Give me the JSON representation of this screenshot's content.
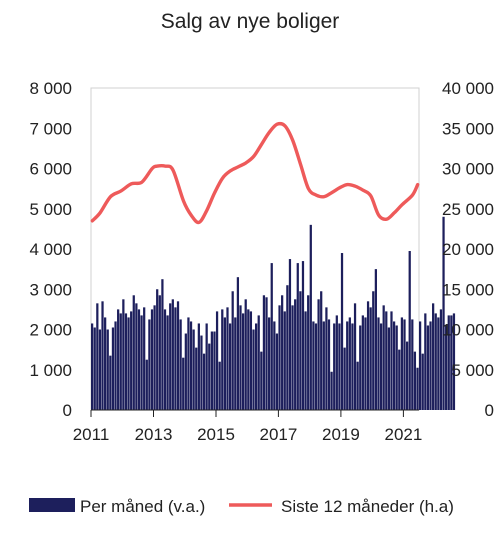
{
  "chart_data": {
    "type": "bar",
    "title": "Salg av nye boliger",
    "left_axis": {
      "ylim": [
        0,
        8000
      ],
      "ticks": [
        "0",
        "1 000",
        "2 000",
        "3 000",
        "4 000",
        "5 000",
        "6 000",
        "7 000",
        "8 000"
      ]
    },
    "right_axis": {
      "ylim": [
        0,
        40000
      ],
      "ticks": [
        "0",
        "5 000",
        "10 000",
        "15 000",
        "20 000",
        "25 000",
        "30 000",
        "35 000",
        "40 000"
      ]
    },
    "x_ticks": [
      "2011",
      "2013",
      "2015",
      "2017",
      "2019",
      "2021"
    ],
    "x_range": [
      "2011-01",
      "2021-06"
    ],
    "grid": false,
    "legend_position": "bottom",
    "colors": {
      "bars": "#1d1f5c",
      "line": "#ee5a5a"
    },
    "series": [
      {
        "name": "Per måned (v.a.)",
        "axis": "left",
        "kind": "bar",
        "start": "2011-01",
        "values": [
          2150,
          2050,
          2650,
          2000,
          2700,
          2300,
          2000,
          1350,
          2050,
          2200,
          2500,
          2400,
          2750,
          2400,
          2300,
          2450,
          2850,
          2650,
          2500,
          2350,
          2550,
          1250,
          2250,
          2500,
          2600,
          3000,
          2850,
          3250,
          2500,
          2350,
          2650,
          2750,
          2550,
          2700,
          2250,
          1300,
          1900,
          2300,
          2200,
          2000,
          1550,
          2150,
          1850,
          1400,
          2150,
          1650,
          1950,
          1950,
          2450,
          1200,
          2500,
          2300,
          2550,
          2150,
          2950,
          2300,
          3300,
          2600,
          2400,
          2750,
          2500,
          2450,
          2000,
          2150,
          2350,
          1450,
          2850,
          2800,
          2300,
          3650,
          2200,
          1900,
          2600,
          2850,
          2450,
          3100,
          3750,
          2600,
          2750,
          3650,
          2950,
          3700,
          2450,
          2850,
          4600,
          2200,
          2150,
          2750,
          2950,
          2200,
          2550,
          2250,
          950,
          2150,
          2350,
          2150,
          3900,
          1550,
          2200,
          2300,
          2150,
          2650,
          1200,
          2100,
          2350,
          2300,
          2700,
          2550,
          2950,
          3500,
          2300,
          2150,
          2600,
          2450,
          2050,
          2450,
          2200,
          2100,
          1500,
          2300,
          2250,
          1700,
          3950,
          2250,
          1450,
          1050,
          2200,
          1400,
          2400,
          2100,
          2200,
          2650,
          2400,
          2300,
          2500,
          4800,
          2100,
          2350,
          2350,
          2400
        ]
      },
      {
        "name": "Siste 12 måneder (h.a)",
        "axis": "right",
        "kind": "line",
        "points": [
          [
            "2011-01",
            23500
          ],
          [
            "2011-04",
            24500
          ],
          [
            "2011-08",
            26500
          ],
          [
            "2011-12",
            27200
          ],
          [
            "2012-04",
            28100
          ],
          [
            "2012-08",
            28300
          ],
          [
            "2012-12",
            30000
          ],
          [
            "2013-02",
            30300
          ],
          [
            "2013-05",
            30300
          ],
          [
            "2013-08",
            29800
          ],
          [
            "2013-12",
            26000
          ],
          [
            "2014-03",
            24200
          ],
          [
            "2014-06",
            23300
          ],
          [
            "2014-09",
            24800
          ],
          [
            "2014-12",
            27000
          ],
          [
            "2015-03",
            28800
          ],
          [
            "2015-06",
            29700
          ],
          [
            "2015-09",
            30200
          ],
          [
            "2015-12",
            30700
          ],
          [
            "2016-03",
            31500
          ],
          [
            "2016-06",
            33000
          ],
          [
            "2016-09",
            34500
          ],
          [
            "2016-12",
            35500
          ],
          [
            "2017-03",
            35300
          ],
          [
            "2017-06",
            33500
          ],
          [
            "2017-09",
            30500
          ],
          [
            "2017-12",
            27500
          ],
          [
            "2018-03",
            26700
          ],
          [
            "2018-06",
            26500
          ],
          [
            "2018-09",
            27000
          ],
          [
            "2018-12",
            27600
          ],
          [
            "2019-03",
            28000
          ],
          [
            "2019-06",
            27800
          ],
          [
            "2019-09",
            27300
          ],
          [
            "2019-12",
            26600
          ],
          [
            "2020-03",
            24200
          ],
          [
            "2020-06",
            23700
          ],
          [
            "2020-09",
            24500
          ],
          [
            "2020-12",
            25500
          ],
          [
            "2021-04",
            26700
          ],
          [
            "2021-06",
            28000
          ]
        ]
      }
    ]
  }
}
